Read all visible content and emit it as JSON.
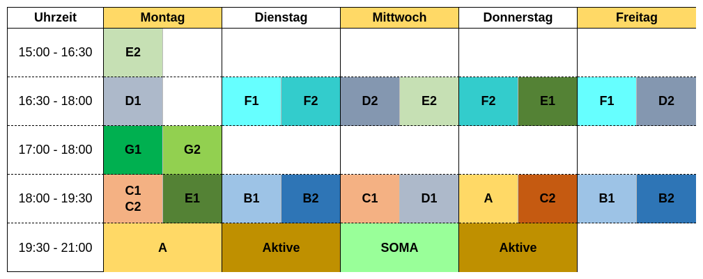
{
  "headers": [
    {
      "label": "Uhrzeit",
      "color": "#ffffff"
    },
    {
      "label": "Montag",
      "color": "#ffd966"
    },
    {
      "label": "Dienstag",
      "color": "#ffffff"
    },
    {
      "label": "Mittwoch",
      "color": "#ffd966"
    },
    {
      "label": "Donnerstag",
      "color": "#ffffff"
    },
    {
      "label": "Freitag",
      "color": "#ffd966"
    }
  ],
  "rows": [
    {
      "time": "15:00 - 16:30",
      "cells": [
        {
          "label": "E2",
          "color": "#c6e0b4",
          "span": 1
        },
        {
          "label": "",
          "color": "#ffffff",
          "span": 1
        },
        {
          "label": "",
          "color": "#ffffff",
          "span": 2
        },
        {
          "label": "",
          "color": "#ffffff",
          "span": 2
        },
        {
          "label": "",
          "color": "#ffffff",
          "span": 2
        },
        {
          "label": "",
          "color": "#ffffff",
          "span": 2
        }
      ]
    },
    {
      "time": "16:30 - 18:00",
      "cells": [
        {
          "label": "D1",
          "color": "#adb9ca",
          "span": 1
        },
        {
          "label": "",
          "color": "#ffffff",
          "span": 1
        },
        {
          "label": "F1",
          "color": "#66ffff",
          "span": 1
        },
        {
          "label": "F2",
          "color": "#33cccc",
          "span": 1
        },
        {
          "label": "D2",
          "color": "#8497b0",
          "span": 1
        },
        {
          "label": "E2",
          "color": "#c6e0b4",
          "span": 1
        },
        {
          "label": "F2",
          "color": "#33cccc",
          "span": 1
        },
        {
          "label": "E1",
          "color": "#548235",
          "span": 1
        },
        {
          "label": "F1",
          "color": "#66ffff",
          "span": 1
        },
        {
          "label": "D2",
          "color": "#8497b0",
          "span": 1
        }
      ]
    },
    {
      "time": "17:00 - 18:00",
      "cells": [
        {
          "label": "G1",
          "color": "#00b050",
          "span": 1
        },
        {
          "label": "G2",
          "color": "#92d050",
          "span": 1
        },
        {
          "label": "",
          "color": "#ffffff",
          "span": 2
        },
        {
          "label": "",
          "color": "#ffffff",
          "span": 2
        },
        {
          "label": "",
          "color": "#ffffff",
          "span": 2
        },
        {
          "label": "",
          "color": "#ffffff",
          "span": 2
        }
      ]
    },
    {
      "time": "18:00 - 19:30",
      "cells": [
        {
          "label": "C1\nC2",
          "color": "#f4b183",
          "span": 1
        },
        {
          "label": "E1",
          "color": "#548235",
          "span": 1
        },
        {
          "label": "B1",
          "color": "#9dc3e6",
          "span": 1
        },
        {
          "label": "B2",
          "color": "#2e75b6",
          "span": 1
        },
        {
          "label": "C1",
          "color": "#f4b183",
          "span": 1
        },
        {
          "label": "D1",
          "color": "#adb9ca",
          "span": 1
        },
        {
          "label": "A",
          "color": "#ffd966",
          "span": 1
        },
        {
          "label": "C2",
          "color": "#c55a11",
          "span": 1
        },
        {
          "label": "B1",
          "color": "#9dc3e6",
          "span": 1
        },
        {
          "label": "B2",
          "color": "#2e75b6",
          "span": 1
        }
      ]
    },
    {
      "time": "19:30 - 21:00",
      "cells": [
        {
          "label": "A",
          "color": "#ffd966",
          "span": 2
        },
        {
          "label": "Aktive",
          "color": "#bf9000",
          "span": 2
        },
        {
          "label": "SOMA",
          "color": "#99ff99",
          "span": 2
        },
        {
          "label": "Aktive",
          "color": "#bf9000",
          "span": 2
        },
        {
          "label": "",
          "color": "#ffffff",
          "span": 2
        }
      ]
    }
  ]
}
